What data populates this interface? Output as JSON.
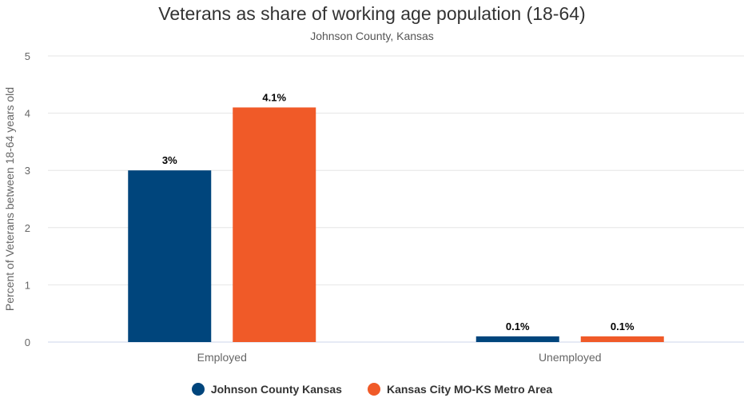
{
  "chart_data": {
    "type": "bar",
    "title": "Veterans as share of working age population (18-64)",
    "subtitle": "Johnson County, Kansas",
    "ylabel": "Percent of Veterans between 18-64 years old",
    "xlabel": "",
    "ylim": [
      0,
      5
    ],
    "yticks": [
      0,
      1,
      2,
      3,
      4,
      5
    ],
    "categories": [
      "Employed",
      "Unemployed"
    ],
    "series": [
      {
        "name": "Johnson County Kansas",
        "values": [
          3.0,
          0.1
        ],
        "labels": [
          "3%",
          "0.1%"
        ],
        "color": "#00457c"
      },
      {
        "name": "Kansas City MO-KS Metro Area",
        "values": [
          4.1,
          0.1
        ],
        "labels": [
          "4.1%",
          "0.1%"
        ],
        "color": "#f05a28"
      }
    ],
    "grid": true,
    "legend": "bottom-center"
  }
}
